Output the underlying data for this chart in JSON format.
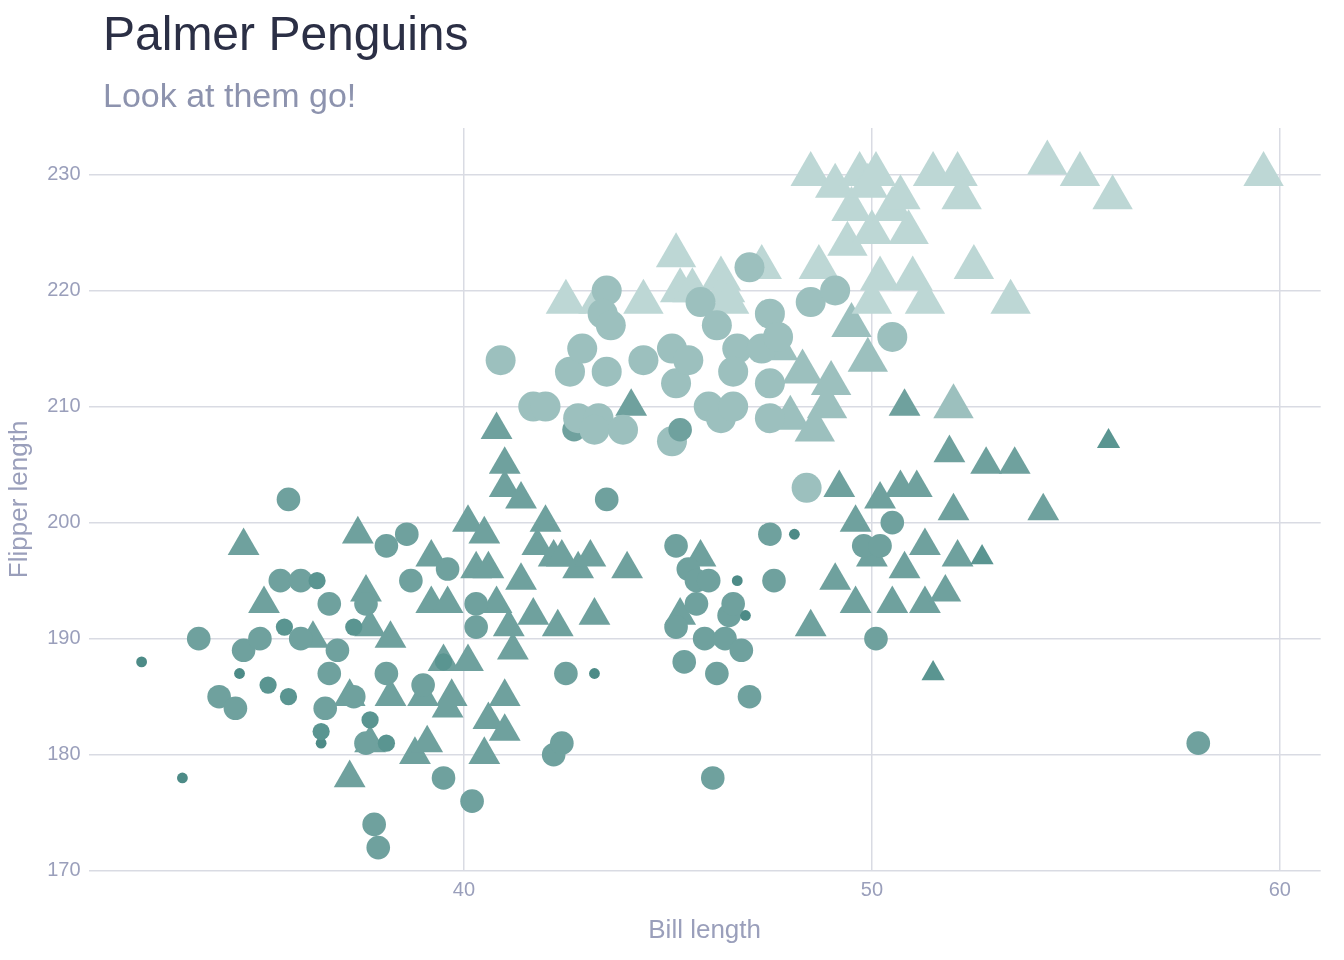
{
  "chart_data": {
    "type": "bubble",
    "title": "Palmer Penguins",
    "subtitle": "Look at them go!",
    "xlabel": "Bill length",
    "ylabel": "Flipper length",
    "xlim": [
      30.8,
      61
    ],
    "xticks": [
      40,
      50,
      60
    ],
    "ylim": [
      170,
      234
    ],
    "yticks": [
      170,
      180,
      190,
      200,
      210,
      220,
      230
    ],
    "grid": true,
    "legend": false,
    "series": [
      {
        "marker": "circle",
        "x": [
          32.1,
          33.1,
          33.5,
          34.0,
          34.4,
          34.5,
          34.6,
          35.0,
          35.2,
          35.5,
          35.6,
          35.7,
          35.7,
          36.0,
          36.0,
          36.4,
          36.7,
          36.7,
          36.5,
          36.5,
          36.6,
          36.9,
          37.3,
          37.3,
          37.6,
          37.7,
          37.6,
          37.8,
          37.9,
          38.1,
          38.1,
          38.1,
          38.6,
          38.7,
          39.0,
          39.5,
          39.5,
          39.6,
          40.2,
          40.3,
          40.3,
          42.2,
          42.4,
          42.5,
          43.2,
          43.5,
          45.2,
          45.2,
          45.4,
          45.5,
          45.7,
          45.7,
          45.9,
          46.0,
          46.2,
          46.1,
          46.4,
          46.5,
          46.6,
          46.7,
          46.8,
          46.9,
          47.0,
          47.5,
          47.6,
          48.1,
          48.4,
          49.8,
          50.1,
          50.2,
          50.5,
          58.0,
          40.9,
          41.7,
          42.0,
          42.6,
          42.9,
          42.7,
          42.8,
          43.3,
          43.2,
          43.5,
          43.4,
          43.6,
          43.5,
          43.9,
          44.4,
          45.1,
          45.1,
          45.2,
          45.3,
          45.5,
          45.8,
          46.0,
          46.2,
          46.3,
          46.7,
          46.6,
          47.0,
          46.6,
          47.3,
          47.5,
          47.5,
          47.7,
          47.5,
          48.5,
          49.1,
          50.5
        ],
        "values": [
          188,
          178,
          190,
          185,
          184,
          187,
          189,
          190,
          186,
          195,
          191,
          202,
          185,
          195,
          190,
          195,
          193,
          187,
          181,
          182,
          184,
          189,
          191,
          185,
          193,
          183,
          181,
          174,
          172,
          187,
          181,
          198,
          199,
          195,
          186,
          188,
          178,
          196,
          176,
          193,
          191,
          180,
          181,
          187,
          187,
          202,
          198,
          191,
          188,
          196,
          193,
          195,
          190,
          195,
          187,
          178,
          190,
          192,
          193,
          195,
          189,
          192,
          185,
          199,
          195,
          199,
          203,
          198,
          190,
          198,
          200,
          181,
          214,
          210,
          210,
          213,
          215,
          208,
          209,
          209,
          208,
          220,
          218,
          217,
          213,
          208,
          214,
          215,
          207,
          212,
          208,
          214,
          219,
          210,
          217,
          209,
          215,
          210,
          222,
          213,
          215,
          218,
          212,
          216,
          209,
          219,
          220,
          216
        ],
        "sizes": [
          0.13,
          0.13,
          0.62,
          0.62,
          0.62,
          0.13,
          0.62,
          0.62,
          0.33,
          0.62,
          0.33,
          0.62,
          0.33,
          0.62,
          0.62,
          0.33,
          0.62,
          0.62,
          0.13,
          0.33,
          0.62,
          0.62,
          0.33,
          0.62,
          0.62,
          0.33,
          0.62,
          0.62,
          0.62,
          0.62,
          0.33,
          0.62,
          0.62,
          0.62,
          0.62,
          0.33,
          0.62,
          0.62,
          0.62,
          0.62,
          0.62,
          0.62,
          0.62,
          0.62,
          0.13,
          0.62,
          0.62,
          0.62,
          0.62,
          0.62,
          0.62,
          0.62,
          0.62,
          0.62,
          0.62,
          0.62,
          0.62,
          0.62,
          0.62,
          0.13,
          0.62,
          0.13,
          0.62,
          0.62,
          0.62,
          0.13,
          1,
          0.62,
          0.62,
          0.62,
          0.62,
          0.62,
          1,
          1,
          1,
          1,
          1,
          0.62,
          1,
          1,
          1,
          1,
          1,
          1,
          1,
          1,
          1,
          1,
          1,
          1,
          0.62,
          1,
          1,
          1,
          1,
          1,
          1,
          1,
          1,
          1,
          1,
          1,
          1,
          1,
          1,
          1,
          1,
          1
        ],
        "colors": [
          "#4d8b87",
          "#4d8b87",
          "#6fa19e",
          "#6fa19e",
          "#6fa19e",
          "#4d8b87",
          "#6fa19e",
          "#6fa19e",
          "#5a9591",
          "#6fa19e",
          "#5a9591",
          "#6fa19e",
          "#5a9591",
          "#6fa19e",
          "#6fa19e",
          "#5a9591",
          "#6fa19e",
          "#6fa19e",
          "#4d8b87",
          "#5a9591",
          "#6fa19e",
          "#6fa19e",
          "#5a9591",
          "#6fa19e",
          "#6fa19e",
          "#5a9591",
          "#6fa19e",
          "#6fa19e",
          "#6fa19e",
          "#6fa19e",
          "#5a9591",
          "#6fa19e",
          "#6fa19e",
          "#6fa19e",
          "#6fa19e",
          "#5a9591",
          "#6fa19e",
          "#6fa19e",
          "#6fa19e",
          "#6fa19e",
          "#6fa19e",
          "#6fa19e",
          "#6fa19e",
          "#6fa19e",
          "#4d8b87",
          "#6fa19e",
          "#6fa19e",
          "#6fa19e",
          "#6fa19e",
          "#6fa19e",
          "#6fa19e",
          "#6fa19e",
          "#6fa19e",
          "#6fa19e",
          "#6fa19e",
          "#6fa19e",
          "#6fa19e",
          "#6fa19e",
          "#6fa19e",
          "#4d8b87",
          "#6fa19e",
          "#4d8b87",
          "#6fa19e",
          "#6fa19e",
          "#6fa19e",
          "#4d8b87",
          "#9cc0be",
          "#6fa19e",
          "#6fa19e",
          "#6fa19e",
          "#6fa19e",
          "#6fa19e",
          "#9cc0be",
          "#9cc0be",
          "#9cc0be",
          "#9cc0be",
          "#9cc0be",
          "#6fa19e",
          "#9cc0be",
          "#9cc0be",
          "#9cc0be",
          "#9cc0be",
          "#9cc0be",
          "#9cc0be",
          "#9cc0be",
          "#9cc0be",
          "#9cc0be",
          "#9cc0be",
          "#9cc0be",
          "#9cc0be",
          "#6fa19e",
          "#9cc0be",
          "#9cc0be",
          "#9cc0be",
          "#9cc0be",
          "#9cc0be",
          "#9cc0be",
          "#9cc0be",
          "#9cc0be",
          "#9cc0be",
          "#9cc0be",
          "#9cc0be",
          "#9cc0be",
          "#9cc0be",
          "#9cc0be",
          "#9cc0be",
          "#9cc0be",
          "#9cc0be"
        ]
      },
      {
        "marker": "triangle",
        "x": [
          34.6,
          35.1,
          36.3,
          37.2,
          37.2,
          37.4,
          37.6,
          37.7,
          37.7,
          38.2,
          38.2,
          38.8,
          39.0,
          39.1,
          39.2,
          39.2,
          39.5,
          39.6,
          39.6,
          39.7,
          40.1,
          40.1,
          40.3,
          40.5,
          40.5,
          40.6,
          40.8,
          40.6,
          40.8,
          41.0,
          41.0,
          41.0,
          41.0,
          41.1,
          41.2,
          41.4,
          41.4,
          41.7,
          41.8,
          42.0,
          42.2,
          42.3,
          42.4,
          42.8,
          43.1,
          43.2,
          44.0,
          45.3,
          45.8,
          48.5,
          49.2,
          49.6,
          49.1,
          49.6,
          50.0,
          50.2,
          50.5,
          50.7,
          50.8,
          50.8,
          51.1,
          51.3,
          51.3,
          51.5,
          51.8,
          51.9,
          52.0,
          52.0,
          52.1,
          52.7,
          52.8,
          53.5,
          54.2,
          55.8,
          42.5,
          43.3,
          44.1,
          44.4,
          45.2,
          45.3,
          45.6,
          46.3,
          46.4,
          46.5,
          47.3,
          47.7,
          48.0,
          48.3,
          48.5,
          48.6,
          48.7,
          48.9,
          49.0,
          49.1,
          49.4,
          49.5,
          49.5,
          49.7,
          49.9,
          49.9,
          50.0,
          50.0,
          50.2,
          50.1,
          50.5,
          50.7,
          50.9,
          51.0,
          51.3,
          51.5,
          52.1,
          52.2,
          52.5,
          53.4,
          54.3,
          55.1,
          55.9,
          59.6
        ],
        "values": [
          198,
          193,
          190,
          185,
          178,
          199,
          194,
          191,
          181,
          185,
          190,
          180,
          185,
          181,
          197,
          193,
          188,
          184,
          193,
          185,
          200,
          188,
          196,
          180,
          199,
          196,
          208,
          183,
          193,
          185,
          205,
          203,
          182,
          191,
          189,
          202,
          195,
          192,
          198,
          200,
          197,
          191,
          197,
          196,
          197,
          192,
          196,
          192,
          197,
          191,
          203,
          200,
          195,
          193,
          197,
          202,
          193,
          203,
          196,
          210,
          203,
          198,
          193,
          187,
          194,
          206,
          210,
          201,
          197,
          197,
          205,
          205,
          201,
          207,
          219,
          219,
          210,
          219,
          223,
          220,
          220,
          221,
          220,
          219,
          222,
          215,
          209,
          213,
          230,
          208,
          222,
          210,
          212,
          229,
          224,
          227,
          217,
          230,
          229,
          214,
          225,
          219,
          221,
          230,
          227,
          228,
          225,
          221,
          219,
          230,
          230,
          228,
          222,
          219,
          231,
          230,
          228,
          230
        ],
        "sizes": [
          0.62,
          0.62,
          0.62,
          0.62,
          0.62,
          0.62,
          0.62,
          0.62,
          0.62,
          0.62,
          0.62,
          0.62,
          0.62,
          0.62,
          0.62,
          0.62,
          0.62,
          0.62,
          0.62,
          0.62,
          0.62,
          0.62,
          0.62,
          0.62,
          0.62,
          0.62,
          0.62,
          0.62,
          0.62,
          0.62,
          0.62,
          0.62,
          0.62,
          0.62,
          0.62,
          0.62,
          0.62,
          0.62,
          0.62,
          0.62,
          0.62,
          0.62,
          0.62,
          0.62,
          0.62,
          0.62,
          0.62,
          0.62,
          0.62,
          0.62,
          0.62,
          0.62,
          0.62,
          0.62,
          0.62,
          0.62,
          0.62,
          0.62,
          0.62,
          0.62,
          0.62,
          0.62,
          0.62,
          0.33,
          0.62,
          0.62,
          1,
          0.62,
          0.62,
          0.33,
          0.62,
          0.62,
          0.62,
          0.33,
          1,
          1,
          0.62,
          1,
          1,
          1,
          1,
          1,
          1,
          1,
          1,
          1,
          1,
          1,
          1,
          1,
          1,
          1,
          1,
          1,
          1,
          1,
          1,
          1,
          1,
          1,
          1,
          1,
          1,
          1,
          1,
          1,
          1,
          1,
          1,
          1,
          1,
          1,
          1,
          1,
          1,
          1,
          1,
          1
        ],
        "colors": [
          "#6fa19e",
          "#6fa19e",
          "#6fa19e",
          "#6fa19e",
          "#6fa19e",
          "#6fa19e",
          "#6fa19e",
          "#6fa19e",
          "#6fa19e",
          "#6fa19e",
          "#6fa19e",
          "#6fa19e",
          "#6fa19e",
          "#6fa19e",
          "#6fa19e",
          "#6fa19e",
          "#6fa19e",
          "#6fa19e",
          "#6fa19e",
          "#6fa19e",
          "#6fa19e",
          "#6fa19e",
          "#6fa19e",
          "#6fa19e",
          "#6fa19e",
          "#6fa19e",
          "#6fa19e",
          "#6fa19e",
          "#6fa19e",
          "#6fa19e",
          "#6fa19e",
          "#6fa19e",
          "#6fa19e",
          "#6fa19e",
          "#6fa19e",
          "#6fa19e",
          "#6fa19e",
          "#6fa19e",
          "#6fa19e",
          "#6fa19e",
          "#6fa19e",
          "#6fa19e",
          "#6fa19e",
          "#6fa19e",
          "#6fa19e",
          "#6fa19e",
          "#6fa19e",
          "#6fa19e",
          "#6fa19e",
          "#6fa19e",
          "#6fa19e",
          "#6fa19e",
          "#6fa19e",
          "#6fa19e",
          "#6fa19e",
          "#6fa19e",
          "#6fa19e",
          "#6fa19e",
          "#6fa19e",
          "#6fa19e",
          "#6fa19e",
          "#6fa19e",
          "#6fa19e",
          "#5a9591",
          "#6fa19e",
          "#6fa19e",
          "#9cc0be",
          "#6fa19e",
          "#6fa19e",
          "#5a9591",
          "#6fa19e",
          "#6fa19e",
          "#6fa19e",
          "#5a9591",
          "#bdd7d5",
          "#bdd7d5",
          "#6fa19e",
          "#bdd7d5",
          "#bdd7d5",
          "#bdd7d5",
          "#bdd7d5",
          "#bdd7d5",
          "#bdd7d5",
          "#bdd7d5",
          "#bdd7d5",
          "#9cc0be",
          "#9cc0be",
          "#9cc0be",
          "#bdd7d5",
          "#9cc0be",
          "#bdd7d5",
          "#9cc0be",
          "#9cc0be",
          "#bdd7d5",
          "#bdd7d5",
          "#bdd7d5",
          "#9cc0be",
          "#bdd7d5",
          "#bdd7d5",
          "#9cc0be",
          "#bdd7d5",
          "#bdd7d5",
          "#bdd7d5",
          "#bdd7d5",
          "#bdd7d5",
          "#bdd7d5",
          "#bdd7d5",
          "#bdd7d5",
          "#bdd7d5",
          "#bdd7d5",
          "#bdd7d5",
          "#bdd7d5",
          "#bdd7d5",
          "#bdd7d5",
          "#bdd7d5",
          "#bdd7d5",
          "#bdd7d5",
          "#bdd7d5"
        ]
      }
    ]
  }
}
